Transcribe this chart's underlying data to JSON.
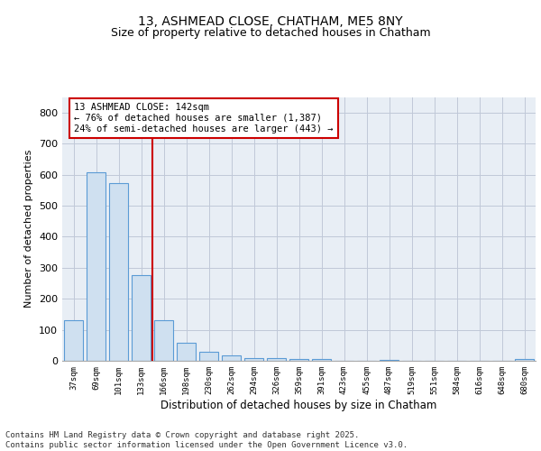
{
  "title_line1": "13, ASHMEAD CLOSE, CHATHAM, ME5 8NY",
  "title_line2": "Size of property relative to detached houses in Chatham",
  "xlabel": "Distribution of detached houses by size in Chatham",
  "ylabel": "Number of detached properties",
  "categories": [
    "37sqm",
    "69sqm",
    "101sqm",
    "133sqm",
    "166sqm",
    "198sqm",
    "230sqm",
    "262sqm",
    "294sqm",
    "326sqm",
    "359sqm",
    "391sqm",
    "423sqm",
    "455sqm",
    "487sqm",
    "519sqm",
    "551sqm",
    "584sqm",
    "616sqm",
    "648sqm",
    "680sqm"
  ],
  "values": [
    130,
    608,
    573,
    275,
    132,
    57,
    28,
    16,
    8,
    10,
    7,
    5,
    0,
    0,
    4,
    0,
    0,
    0,
    0,
    0,
    6
  ],
  "bar_color": "#cfe0f0",
  "bar_edge_color": "#5b9bd5",
  "vline_x_index": 3.5,
  "vline_color": "#cc0000",
  "annotation_text": "13 ASHMEAD CLOSE: 142sqm\n← 76% of detached houses are smaller (1,387)\n24% of semi-detached houses are larger (443) →",
  "annotation_box_color": "#ffffff",
  "annotation_box_edge": "#cc0000",
  "ylim": [
    0,
    850
  ],
  "yticks": [
    0,
    100,
    200,
    300,
    400,
    500,
    600,
    700,
    800
  ],
  "grid_color": "#c0c8d8",
  "background_color": "#e8eef5",
  "footer_text": "Contains HM Land Registry data © Crown copyright and database right 2025.\nContains public sector information licensed under the Open Government Licence v3.0.",
  "title_fontsize": 10,
  "subtitle_fontsize": 9,
  "ann_fontsize": 7.5
}
